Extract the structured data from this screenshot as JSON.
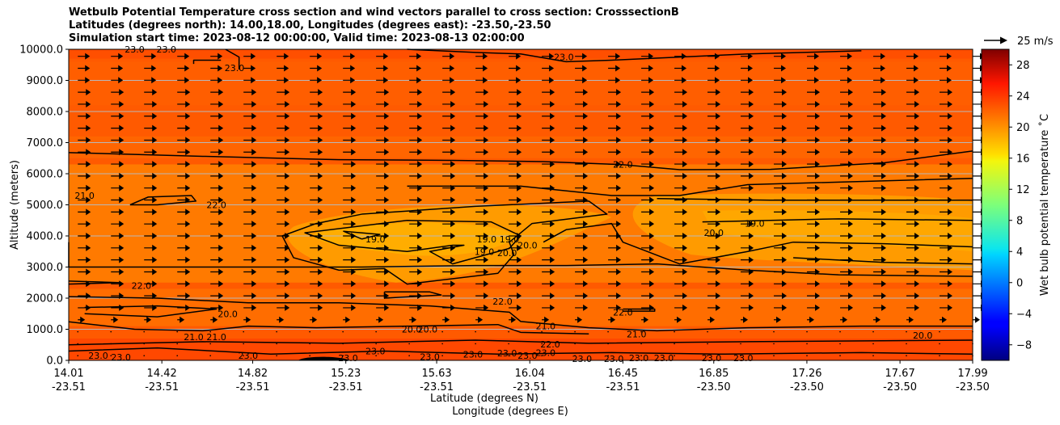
{
  "chart_data": {
    "type": "heatmap",
    "title_lines": [
      "Wetbulb Potential Temperature cross section and wind vectors parallel to cross section: CrosssectionB",
      "Latitudes (degrees north): 14.00,18.00, Longitudes (degrees east): -23.50,-23.50",
      "Simulation start time: 2023-08-12 00:00:00, Valid time: 2023-08-13 02:00:00"
    ],
    "ylabel": "Altitude (meters)",
    "xlabel_lat": "Latitude (degrees N)",
    "xlabel_lon": "Longitude (degrees E)",
    "ylim": [
      0,
      10000
    ],
    "y_ticks": [
      "0.0",
      "1000.0",
      "2000.0",
      "3000.0",
      "4000.0",
      "5000.0",
      "6000.0",
      "7000.0",
      "8000.0",
      "9000.0",
      "10000.0"
    ],
    "x_ticks": [
      {
        "lat": "14.01",
        "lon": "-23.51"
      },
      {
        "lat": "14.42",
        "lon": "-23.51"
      },
      {
        "lat": "14.82",
        "lon": "-23.51"
      },
      {
        "lat": "15.23",
        "lon": "-23.51"
      },
      {
        "lat": "15.63",
        "lon": "-23.51"
      },
      {
        "lat": "16.04",
        "lon": "-23.51"
      },
      {
        "lat": "16.45",
        "lon": "-23.51"
      },
      {
        "lat": "16.85",
        "lon": "-23.50"
      },
      {
        "lat": "17.26",
        "lon": "-23.50"
      },
      {
        "lat": "17.67",
        "lon": "-23.50"
      },
      {
        "lat": "17.99",
        "lon": "-23.50"
      }
    ],
    "xlim_lat": [
      14.01,
      17.99
    ],
    "colorbar": {
      "label": "Wet bulb potential temperature ˚C",
      "range": [
        -10,
        30
      ],
      "ticks": [
        "−8",
        "−4",
        "0",
        "4",
        "8",
        "12",
        "16",
        "20",
        "24",
        "28"
      ],
      "colormap": "jet"
    },
    "quiver_key": {
      "label": "25 m/s",
      "speed": 25
    },
    "contour_levels": [
      19.0,
      20.0,
      21.0,
      22.0,
      23.0
    ],
    "contour_labels": [
      {
        "text": "23.0",
        "lat": 14.3,
        "alt": 10000
      },
      {
        "text": "23.0",
        "lat": 14.44,
        "alt": 10000
      },
      {
        "text": "23.0",
        "lat": 14.74,
        "alt": 9400
      },
      {
        "text": "23.0",
        "lat": 16.19,
        "alt": 9750
      },
      {
        "text": "22.0",
        "lat": 16.45,
        "alt": 6300
      },
      {
        "text": "21.0",
        "lat": 14.08,
        "alt": 5300
      },
      {
        "text": "22.0",
        "lat": 14.66,
        "alt": 5000
      },
      {
        "text": "19.0",
        "lat": 15.36,
        "alt": 3900
      },
      {
        "text": "19.0",
        "lat": 15.85,
        "alt": 3900
      },
      {
        "text": "19.0",
        "lat": 15.84,
        "alt": 3500
      },
      {
        "text": "19.0",
        "lat": 15.95,
        "alt": 3900
      },
      {
        "text": "20.0",
        "lat": 16.03,
        "alt": 3700
      },
      {
        "text": "20.0",
        "lat": 15.94,
        "alt": 3450
      },
      {
        "text": "20.0",
        "lat": 16.85,
        "alt": 4100
      },
      {
        "text": "19.0",
        "lat": 17.03,
        "alt": 4400
      },
      {
        "text": "22.0",
        "lat": 14.33,
        "alt": 2400
      },
      {
        "text": "22.0",
        "lat": 15.92,
        "alt": 1900
      },
      {
        "text": "22.0",
        "lat": 16.45,
        "alt": 1550
      },
      {
        "text": "20.0",
        "lat": 14.71,
        "alt": 1500
      },
      {
        "text": "21.0",
        "lat": 14.56,
        "alt": 750
      },
      {
        "text": "21.0",
        "lat": 14.66,
        "alt": 750
      },
      {
        "text": "20.0",
        "lat": 15.52,
        "alt": 1000
      },
      {
        "text": "20.0",
        "lat": 15.59,
        "alt": 1000
      },
      {
        "text": "21.0",
        "lat": 16.11,
        "alt": 1100
      },
      {
        "text": "21.0",
        "lat": 16.51,
        "alt": 850
      },
      {
        "text": "20.0",
        "lat": 17.77,
        "alt": 800
      },
      {
        "text": "22.0",
        "lat": 16.13,
        "alt": 520
      },
      {
        "text": "23.0",
        "lat": 14.14,
        "alt": 150
      },
      {
        "text": "23.0",
        "lat": 14.24,
        "alt": 100
      },
      {
        "text": "23.0",
        "lat": 14.8,
        "alt": 150
      },
      {
        "text": "23.0",
        "lat": 15.24,
        "alt": 80
      },
      {
        "text": "23.0",
        "lat": 15.36,
        "alt": 300
      },
      {
        "text": "23.0",
        "lat": 15.6,
        "alt": 120
      },
      {
        "text": "23.0",
        "lat": 15.79,
        "alt": 200
      },
      {
        "text": "23.0",
        "lat": 15.94,
        "alt": 230
      },
      {
        "text": "23.0",
        "lat": 16.03,
        "alt": 150
      },
      {
        "text": "23.0",
        "lat": 16.11,
        "alt": 250
      },
      {
        "text": "23.0",
        "lat": 16.27,
        "alt": 50
      },
      {
        "text": "23.0",
        "lat": 16.41,
        "alt": 50
      },
      {
        "text": "23.0",
        "lat": 16.52,
        "alt": 80
      },
      {
        "text": "23.0",
        "lat": 16.63,
        "alt": 80
      },
      {
        "text": "23.0",
        "lat": 16.84,
        "alt": 80
      },
      {
        "text": "23.0",
        "lat": 16.98,
        "alt": 80
      }
    ],
    "contours": [
      {
        "level": 22.0,
        "points": [
          [
            14.01,
            6680
          ],
          [
            14.6,
            6560
          ],
          [
            15.2,
            6450
          ],
          [
            15.7,
            6430
          ],
          [
            16.1,
            6390
          ],
          [
            16.45,
            6290
          ],
          [
            16.7,
            6130
          ],
          [
            17.1,
            6140
          ],
          [
            17.6,
            6350
          ],
          [
            17.99,
            6730
          ]
        ]
      },
      {
        "level": 23.0,
        "points": [
          [
            14.7,
            10000
          ],
          [
            14.76,
            9750
          ],
          [
            14.76,
            9350
          ]
        ]
      },
      {
        "level": 23.0,
        "points": [
          [
            15.5,
            10000
          ],
          [
            15.8,
            9900
          ],
          [
            16.0,
            9850
          ],
          [
            16.2,
            9600
          ],
          [
            16.4,
            9650
          ],
          [
            17.0,
            9850
          ],
          [
            17.5,
            9950
          ]
        ]
      },
      {
        "level": 23.0,
        "points": [
          [
            14.56,
            9530
          ],
          [
            14.56,
            9650
          ],
          [
            14.68,
            9650
          ]
        ]
      },
      {
        "level": 21.0,
        "points": [
          [
            14.28,
            5000
          ],
          [
            14.36,
            5250
          ],
          [
            14.55,
            5300
          ],
          [
            14.57,
            5120
          ],
          [
            14.4,
            5000
          ],
          [
            14.28,
            5000
          ]
        ]
      },
      {
        "level": 21.0,
        "points": [
          [
            14.01,
            3800
          ],
          [
            14.01,
            3000
          ],
          [
            14.3,
            3000
          ],
          [
            14.8,
            3000
          ],
          [
            15.3,
            3000
          ],
          [
            15.8,
            3050
          ],
          [
            16.2,
            3050
          ],
          [
            16.6,
            3100
          ],
          [
            17.0,
            2900
          ],
          [
            17.4,
            2750
          ],
          [
            17.99,
            2700
          ]
        ]
      },
      {
        "level": 20.0,
        "points": [
          [
            15.5,
            5600
          ],
          [
            16.0,
            5600
          ],
          [
            16.4,
            5300
          ],
          [
            16.7,
            5300
          ],
          [
            17.0,
            5650
          ],
          [
            17.99,
            5850
          ]
        ]
      },
      {
        "level": 20.0,
        "points": [
          [
            15.3,
            4700
          ],
          [
            15.8,
            4950
          ],
          [
            16.3,
            5120
          ],
          [
            16.38,
            4700
          ],
          [
            16.05,
            4400
          ],
          [
            15.95,
            3800
          ],
          [
            15.97,
            3400
          ],
          [
            15.9,
            2800
          ],
          [
            15.5,
            2450
          ],
          [
            15.4,
            2950
          ],
          [
            15.2,
            2900
          ],
          [
            15.0,
            3300
          ],
          [
            14.95,
            4000
          ],
          [
            15.1,
            4400
          ],
          [
            15.3,
            4700
          ]
        ]
      },
      {
        "level": 20.0,
        "points": [
          [
            16.6,
            5200
          ],
          [
            17.1,
            5150
          ],
          [
            17.99,
            5150
          ]
        ]
      },
      {
        "level": 19.0,
        "points": [
          [
            15.5,
            4500
          ],
          [
            15.87,
            4450
          ],
          [
            16.0,
            4000
          ],
          [
            15.95,
            3600
          ],
          [
            15.7,
            3100
          ],
          [
            15.6,
            3500
          ],
          [
            15.75,
            3700
          ],
          [
            15.7,
            3700
          ],
          [
            15.5,
            3500
          ],
          [
            15.2,
            3700
          ],
          [
            15.05,
            4100
          ],
          [
            15.5,
            4500
          ]
        ]
      },
      {
        "level": 19.0,
        "points": [
          [
            15.3,
            3900
          ],
          [
            15.22,
            4150
          ],
          [
            15.38,
            4050
          ],
          [
            15.3,
            3900
          ]
        ]
      },
      {
        "level": 19.0,
        "points": [
          [
            16.8,
            4450
          ],
          [
            17.4,
            4550
          ],
          [
            17.99,
            4500
          ]
        ]
      },
      {
        "level": 20.0,
        "points": [
          [
            16.1,
            3800
          ],
          [
            16.2,
            4200
          ],
          [
            16.4,
            4400
          ],
          [
            16.45,
            3800
          ],
          [
            16.7,
            3100
          ],
          [
            17.0,
            3500
          ],
          [
            17.2,
            3800
          ],
          [
            17.6,
            3750
          ],
          [
            17.99,
            3650
          ]
        ]
      },
      {
        "level": 20.0,
        "points": [
          [
            17.2,
            3300
          ],
          [
            17.6,
            3150
          ],
          [
            17.99,
            3100
          ]
        ]
      },
      {
        "level": 22.0,
        "points": [
          [
            14.01,
            2550
          ],
          [
            14.23,
            2500
          ],
          [
            14.01,
            2450
          ]
        ]
      },
      {
        "level": 22.0,
        "points": [
          [
            15.4,
            2200
          ],
          [
            15.6,
            2200
          ],
          [
            15.65,
            2100
          ],
          [
            15.4,
            2000
          ],
          [
            15.4,
            2200
          ]
        ]
      },
      {
        "level": 21.0,
        "points": [
          [
            14.01,
            2050
          ],
          [
            14.4,
            2000
          ],
          [
            14.8,
            1850
          ],
          [
            15.2,
            1850
          ],
          [
            15.6,
            1750
          ],
          [
            15.95,
            1550
          ],
          [
            16.0,
            1250
          ],
          [
            16.3,
            1050
          ],
          [
            16.6,
            950
          ],
          [
            17.0,
            1050
          ],
          [
            17.5,
            1100
          ],
          [
            17.99,
            1100
          ]
        ]
      },
      {
        "level": 21.0,
        "points": [
          [
            14.08,
            1700
          ],
          [
            14.4,
            1750
          ],
          [
            14.66,
            1650
          ],
          [
            14.4,
            1400
          ],
          [
            14.08,
            1500
          ]
        ]
      },
      {
        "level": 20.0,
        "points": [
          [
            14.01,
            1240
          ],
          [
            14.3,
            1000
          ],
          [
            14.6,
            950
          ],
          [
            14.8,
            1100
          ],
          [
            15.1,
            1050
          ],
          [
            15.5,
            1100
          ],
          [
            15.9,
            1150
          ],
          [
            16.0,
            900
          ],
          [
            16.3,
            850
          ]
        ]
      },
      {
        "level": 21.0,
        "points": [
          [
            16.45,
            1650
          ],
          [
            16.59,
            1650
          ],
          [
            16.59,
            1580
          ],
          [
            16.45,
            1580
          ]
        ]
      },
      {
        "level": 22.0,
        "points": [
          [
            14.01,
            500
          ],
          [
            14.6,
            600
          ],
          [
            15.2,
            550
          ],
          [
            15.8,
            650
          ],
          [
            16.3,
            550
          ],
          [
            17.0,
            600
          ],
          [
            17.99,
            650
          ]
        ]
      },
      {
        "level": 23.0,
        "points": [
          [
            14.01,
            300
          ],
          [
            14.4,
            400
          ],
          [
            14.9,
            200
          ],
          [
            15.4,
            300
          ],
          [
            15.9,
            200
          ],
          [
            16.4,
            250
          ],
          [
            16.9,
            200
          ],
          [
            17.5,
            250
          ],
          [
            17.99,
            200
          ]
        ]
      }
    ],
    "wind": {
      "description": "wind vectors parallel to cross section; mostly easterly-positive (pointing right) aloft, near zero in lowest 1000 m",
      "reference_speed_ms": 25
    }
  }
}
